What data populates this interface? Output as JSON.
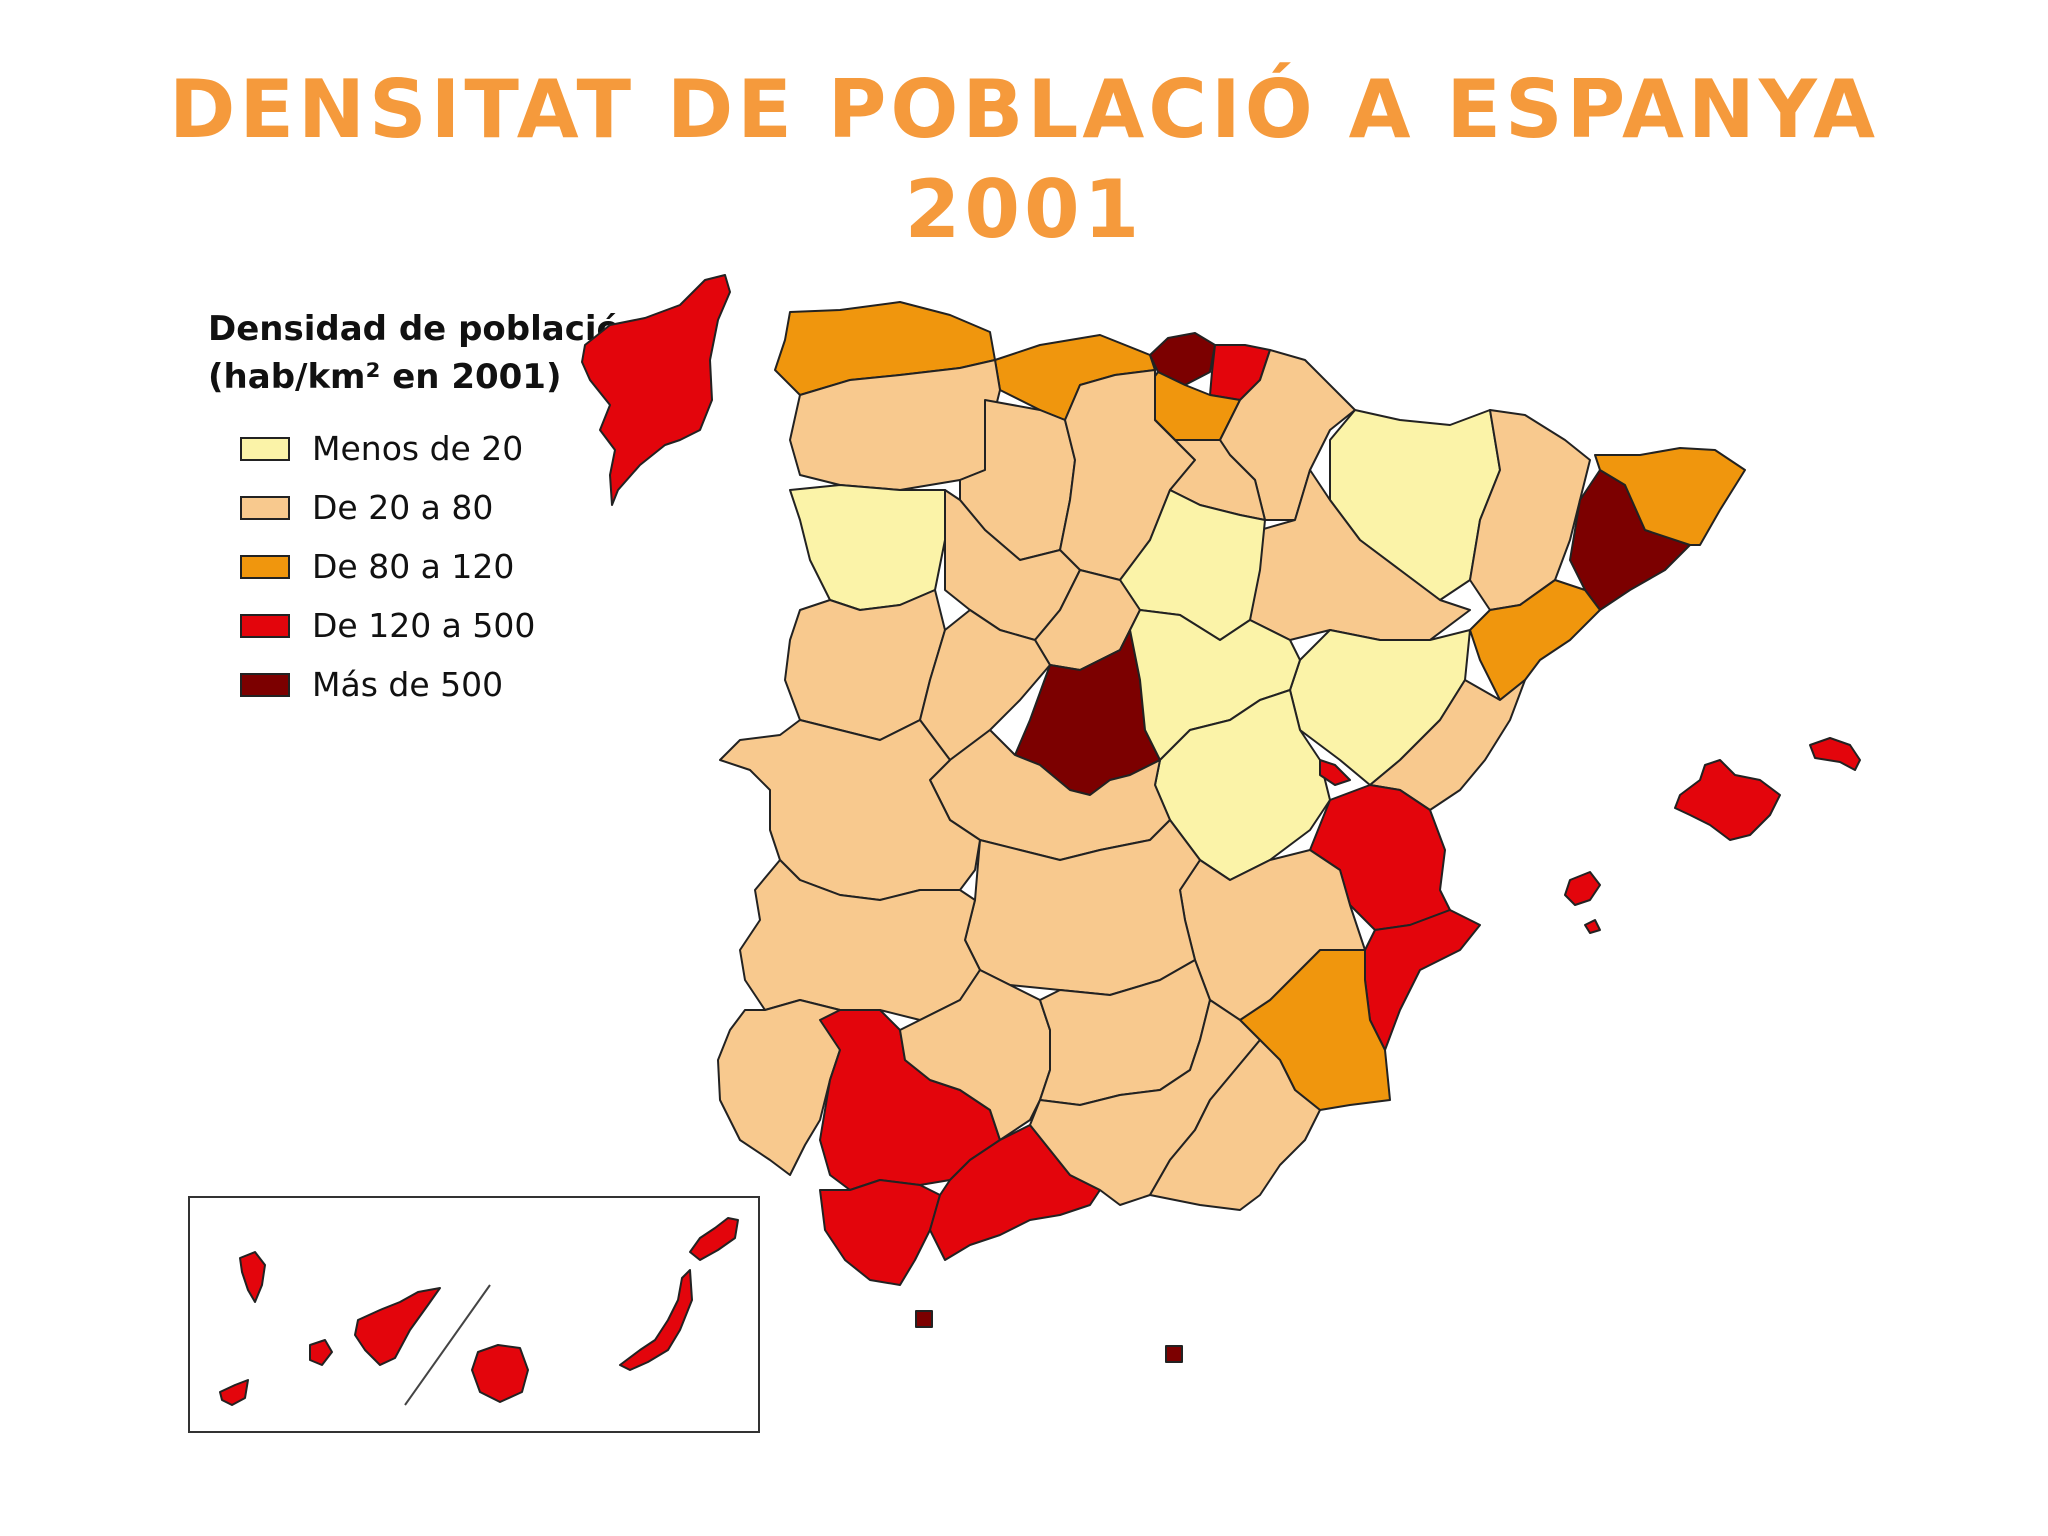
{
  "title": {
    "line1": "DENSITAT DE POBLACIÓ A ESPANYA",
    "line2": "2001"
  },
  "legend": {
    "title_line1": "Densidad de población",
    "title_line2": "(hab/km² en 2001)",
    "items": [
      {
        "label": "Menos de 20",
        "color": "#fbf3a8"
      },
      {
        "label": "De 20 a 80",
        "color": "#f8c98e"
      },
      {
        "label": "De 80 a 120",
        "color": "#f0960d"
      },
      {
        "label": "De 120 a 500",
        "color": "#e3050c"
      },
      {
        "label": "Más de 500",
        "color": "#7c0000"
      }
    ]
  },
  "colors": {
    "title": "#f59a3c",
    "border": "#222222",
    "background": "#ffffff"
  }
}
